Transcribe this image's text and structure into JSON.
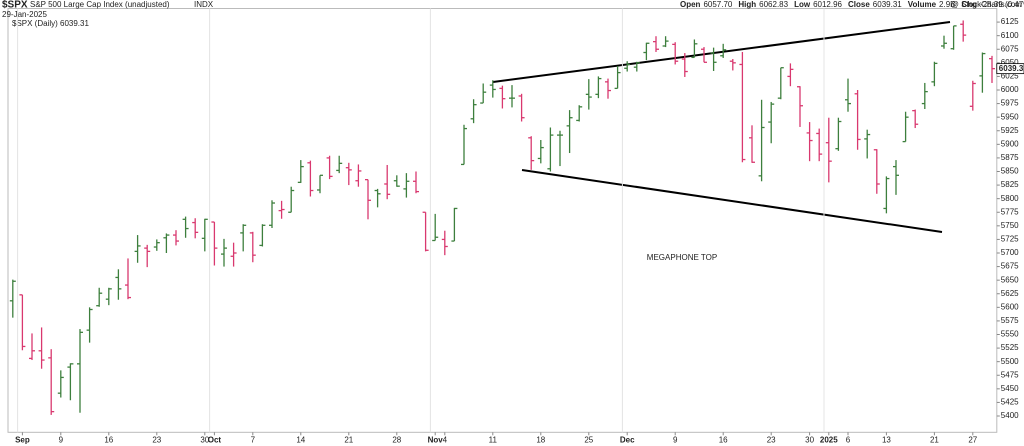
{
  "chart_data": {
    "type": "ohlc",
    "symbol": "$SPX",
    "title": "S&P 500 Large Cap Index (unadjusted)",
    "exchange": "INDX",
    "date": "29-Jan-2025",
    "source": "@ StockCharts.com",
    "quote": [
      {
        "label": "Open",
        "value": "6057.70"
      },
      {
        "label": "High",
        "value": "6062.83"
      },
      {
        "label": "Low",
        "value": "6012.96"
      },
      {
        "label": "Close",
        "value": "6039.31"
      },
      {
        "label": "Volume",
        "value": "2.9B"
      },
      {
        "label": "Chg",
        "value": "-28.39 (0.47%)"
      }
    ],
    "legend": "$SPX (Daily) 6039.31",
    "annotation": "MEGAPHONE TOP",
    "up_color": "#3d7f3d",
    "down_color": "#d9386f",
    "categories": [
      null,
      "Sep",
      null,
      null,
      null,
      "9",
      null,
      null,
      null,
      null,
      "16",
      null,
      null,
      null,
      null,
      "23",
      null,
      null,
      null,
      null,
      "30",
      "Oct",
      null,
      null,
      null,
      "7",
      null,
      null,
      null,
      null,
      "14",
      null,
      null,
      null,
      null,
      "21",
      null,
      null,
      null,
      null,
      "28",
      null,
      null,
      null,
      "Nov",
      "4",
      null,
      null,
      null,
      null,
      "11",
      null,
      null,
      null,
      null,
      "18",
      null,
      null,
      null,
      null,
      "25",
      null,
      null,
      null,
      "Dec",
      null,
      null,
      null,
      null,
      "9",
      null,
      null,
      null,
      null,
      "16",
      null,
      null,
      null,
      null,
      "23",
      null,
      null,
      null,
      "30",
      null,
      "2025",
      null,
      "6",
      null,
      null,
      null,
      "13",
      null,
      null,
      null,
      null,
      "21",
      null,
      null,
      null,
      "27",
      null,
      null
    ],
    "open": [
      5612,
      5623,
      5506,
      5520,
      5507,
      5442,
      5490,
      5496,
      5558,
      5603,
      5615,
      5655,
      5641,
      5703,
      5709,
      5711,
      5728,
      5733,
      5762,
      5756,
      5727,
      5757,
      5698,
      5694,
      5737,
      5737,
      5714,
      5751,
      5778,
      5775,
      5830,
      5866,
      5816,
      5875,
      5852,
      5857,
      5833,
      5835,
      5815,
      5827,
      5833,
      5818,
      5832,
      5775,
      5723,
      5725,
      5722,
      5863,
      5947,
      5976,
      6009,
      6003,
      5985,
      5989,
      5912,
      5874,
      5855,
      5917,
      5934,
      5944,
      5992,
      5992,
      6015,
      6003,
      6040,
      6042,
      6069,
      6089,
      6081,
      6084,
      6057,
      6060,
      6075,
      6068,
      6063,
      6053,
      6047,
      5912,
      5842,
      5941,
      5985,
      6025,
      6006,
      5921,
      5920,
      5903,
      5892,
      5982,
      5993,
      5910,
      5890,
      5782,
      5859,
      5905,
      5962,
      5975,
      6015,
      6081,
      6076,
      6121,
      5970,
      6026,
      6057.7
    ],
    "high": [
      5651,
      5623,
      5552,
      5563,
      5523,
      5484,
      5497,
      5560,
      5600,
      5636,
      5636,
      5670,
      5690,
      5733,
      5715,
      5725,
      5736,
      5742,
      5767,
      5764,
      5763,
      5757,
      5726,
      5719,
      5753,
      5739,
      5753,
      5797,
      5796,
      5822,
      5871,
      5870,
      5843,
      5879,
      5879,
      5866,
      5863,
      5835,
      5818,
      5862,
      5843,
      5847,
      5850,
      5775,
      5772,
      5741,
      5783,
      5936,
      5983,
      6012,
      6018,
      6008,
      6009,
      5993,
      5915,
      5908,
      5931,
      5925,
      5963,
      5972,
      6020,
      6025,
      6021,
      6044,
      6053,
      6052,
      6087,
      6099,
      6099,
      6088,
      6068,
      6093,
      6079,
      6078,
      6085,
      6057,
      6070,
      5935,
      5982,
      5978,
      6041,
      6049,
      6007,
      5941,
      5929,
      5949,
      5949,
      6021,
      6000,
      5927,
      5891,
      5841,
      5871,
      5960,
      5964,
      6013,
      6052,
      6100,
      6118,
      6128,
      6017,
      6069,
      6062.83
    ],
    "low": [
      5581,
      5521,
      5503,
      5487,
      5402,
      5434,
      5429,
      5406,
      5535,
      5601,
      5604,
      5614,
      5615,
      5682,
      5674,
      5704,
      5700,
      5714,
      5728,
      5727,
      5703,
      5677,
      5675,
      5675,
      5703,
      5683,
      5712,
      5746,
      5763,
      5775,
      5829,
      5804,
      5810,
      5836,
      5847,
      5825,
      5822,
      5762,
      5784,
      5799,
      5822,
      5802,
      5810,
      5703,
      5723,
      5696,
      5722,
      5863,
      5939,
      5976,
      5986,
      5966,
      5968,
      5942,
      5853,
      5865,
      5850,
      5860,
      5884,
      5942,
      5964,
      5985,
      5984,
      6003,
      6034,
      6034,
      6055,
      6070,
      6079,
      6047,
      6024,
      6060,
      6051,
      6035,
      6059,
      6036,
      5867,
      5866,
      5832,
      5902,
      5983,
      6007,
      5932,
      5869,
      5869,
      5830,
      5888,
      5960,
      5890,
      5874,
      5809,
      5773,
      5807,
      5905,
      5930,
      5965,
      6007,
      6076,
      6074,
      6089,
      5962,
      5995,
      6012.96
    ],
    "close": [
      5648,
      5528,
      5520,
      5503,
      5408,
      5471,
      5496,
      5554,
      5596,
      5626,
      5634,
      5634,
      5618,
      5713,
      5703,
      5719,
      5733,
      5722,
      5745,
      5738,
      5762,
      5709,
      5709,
      5700,
      5751,
      5696,
      5751,
      5792,
      5780,
      5815,
      5859,
      5815,
      5843,
      5841,
      5865,
      5853,
      5851,
      5797,
      5809,
      5808,
      5823,
      5832,
      5813,
      5705,
      5729,
      5712,
      5782,
      5929,
      5973,
      5996,
      6001,
      5984,
      5985,
      5949,
      5870,
      5894,
      5917,
      5917,
      5949,
      5969,
      5987,
      6021,
      5999,
      6032,
      6047,
      6050,
      6086,
      6075,
      6090,
      6053,
      6034,
      6085,
      6051,
      6051,
      6074,
      6050,
      5872,
      5867,
      5931,
      5974,
      6041,
      6038,
      5971,
      5907,
      5882,
      5869,
      5942,
      5975,
      5909,
      5918,
      5827,
      5837,
      5843,
      5950,
      5937,
      5997,
      6049,
      6086,
      6118,
      6101,
      6012,
      6067,
      6039.31
    ],
    "ylim": [
      5370,
      6150
    ],
    "yticks": [
      5400,
      5425,
      5450,
      5475,
      5500,
      5525,
      5550,
      5575,
      5600,
      5625,
      5650,
      5675,
      5700,
      5725,
      5750,
      5775,
      5800,
      5825,
      5850,
      5875,
      5900,
      5925,
      5950,
      5975,
      6000,
      6025,
      6050,
      6075,
      6100,
      6125
    ]
  }
}
